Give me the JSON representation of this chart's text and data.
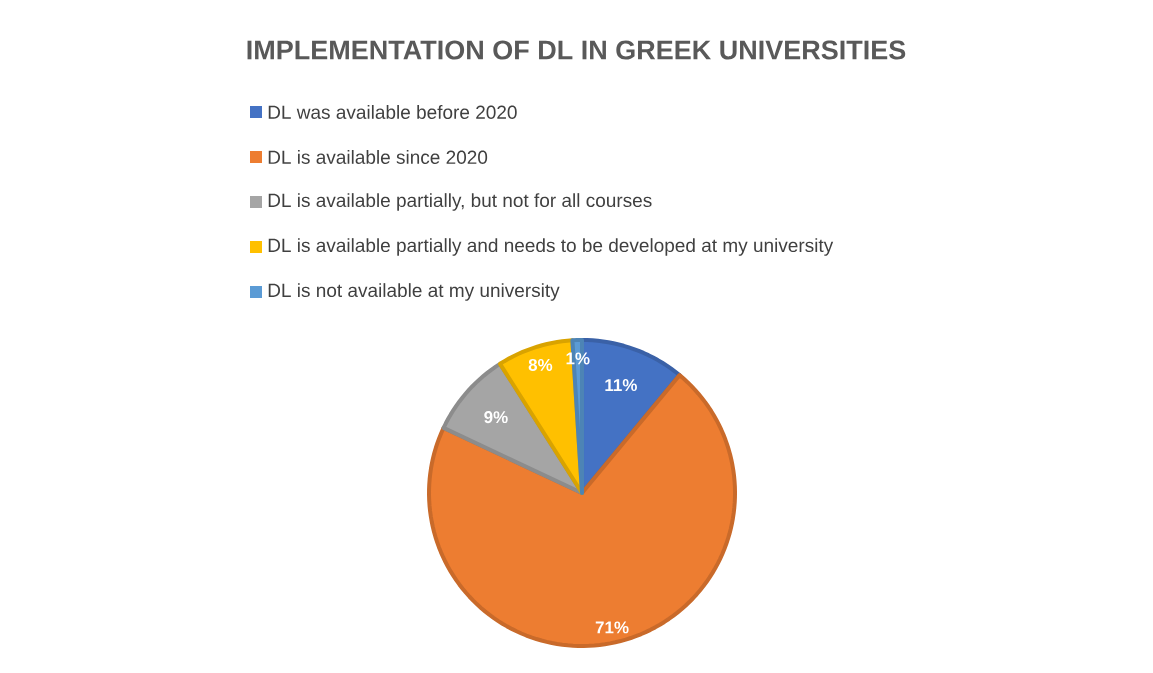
{
  "chart_data": {
    "type": "pie",
    "title": "IMPLEMENTATION OF DL IN GREEK UNIVERSITIES",
    "categories": [
      "DL was available before 2020",
      "DL is available since 2020",
      "DL is available partially, but not for all courses",
      "DL is available partially and needs to be developed at my university",
      "DL is not available at my university"
    ],
    "values": [
      11,
      71,
      9,
      8,
      1
    ],
    "colors": [
      "#4472c4",
      "#ed7d31",
      "#a5a5a5",
      "#ffc000",
      "#5b9bd5"
    ],
    "value_labels": [
      "11%",
      "71%",
      "9%",
      "8%",
      "1%"
    ],
    "legend": "top"
  }
}
